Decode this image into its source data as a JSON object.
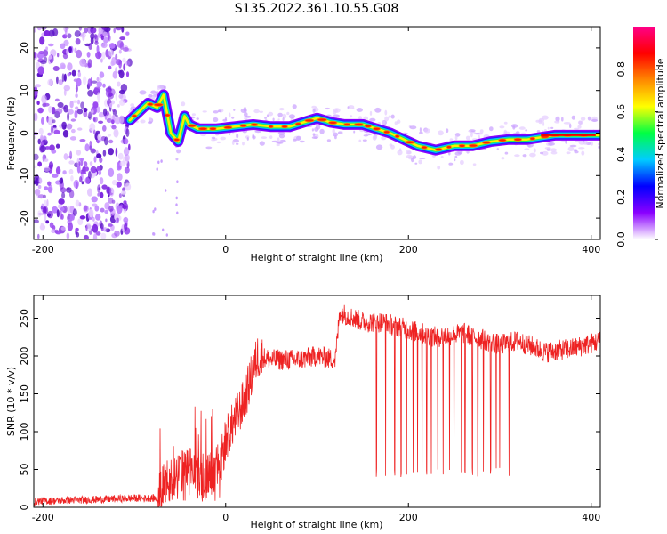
{
  "title": "S135.2022.361.10.55.G08",
  "colors": {
    "snr_line": "#ee2222",
    "ridge_core": "#cc0000",
    "noise": "#7722dd",
    "frame": "#000000"
  },
  "chart_data": [
    {
      "type": "heatmap",
      "title": "S135.2022.361.10.55.G08",
      "xlabel": "Height of straight line (km)",
      "ylabel": "Frequency (Hz)",
      "xlim": [
        -210,
        410
      ],
      "ylim": [
        -25,
        25
      ],
      "xticks": [
        -200,
        0,
        200,
        400
      ],
      "yticks": [
        -20,
        -10,
        0,
        10,
        20
      ],
      "noise_region_x": [
        -210,
        -105
      ],
      "ridge": {
        "x": [
          -105,
          -95,
          -85,
          -75,
          -68,
          -60,
          -52,
          -45,
          -40,
          -30,
          -10,
          10,
          30,
          50,
          70,
          85,
          100,
          115,
          130,
          150,
          165,
          180,
          190,
          200,
          210,
          230,
          250,
          270,
          290,
          310,
          330,
          360,
          380,
          410
        ],
        "freq": [
          3,
          5,
          7,
          6,
          9,
          0,
          -2,
          4,
          2,
          1,
          1,
          1.5,
          2,
          1.5,
          1.5,
          2.5,
          3.5,
          2.5,
          2,
          2,
          1,
          0,
          -1,
          -2,
          -3,
          -4,
          -3,
          -3,
          -2,
          -1.5,
          -1.5,
          -0.5,
          -0.5,
          -0.5
        ]
      },
      "colorbar": {
        "label": "Normalized spectral amplitude",
        "range": [
          0,
          1
        ],
        "ticks": [
          "0.0",
          "0.2",
          "0.4",
          "0.6",
          "0.8"
        ],
        "colors": [
          "#ffffff",
          "#8a00ff",
          "#0000ff",
          "#00ccff",
          "#00ff44",
          "#ffff00",
          "#ff8800",
          "#ff0000",
          "#ff0088"
        ]
      }
    },
    {
      "type": "line",
      "xlabel": "Height of straight line (km)",
      "ylabel": "SNR (10 * v/v)",
      "xlim": [
        -210,
        410
      ],
      "ylim": [
        0,
        280
      ],
      "xticks": [
        -200,
        0,
        200,
        400
      ],
      "yticks": [
        0,
        50,
        100,
        150,
        200,
        250
      ],
      "series": [
        {
          "name": "SNR",
          "x": [
            -210,
            -150,
            -100,
            -75,
            -60,
            -40,
            -20,
            -5,
            0,
            20,
            35,
            50,
            80,
            100,
            120,
            125,
            130,
            150,
            170,
            200,
            230,
            260,
            300,
            320,
            350,
            380,
            410
          ],
          "y": [
            8,
            10,
            12,
            12,
            40,
            50,
            40,
            60,
            90,
            140,
            200,
            195,
            195,
            200,
            195,
            260,
            255,
            245,
            245,
            235,
            225,
            230,
            215,
            220,
            205,
            210,
            220
          ]
        }
      ],
      "dropouts_x": [
        165,
        175,
        185,
        192,
        198,
        205,
        210,
        215,
        220,
        225,
        232,
        238,
        245,
        250,
        258,
        262,
        270,
        276,
        282,
        290,
        296,
        300,
        310
      ],
      "dropout_floor": 40
    }
  ]
}
